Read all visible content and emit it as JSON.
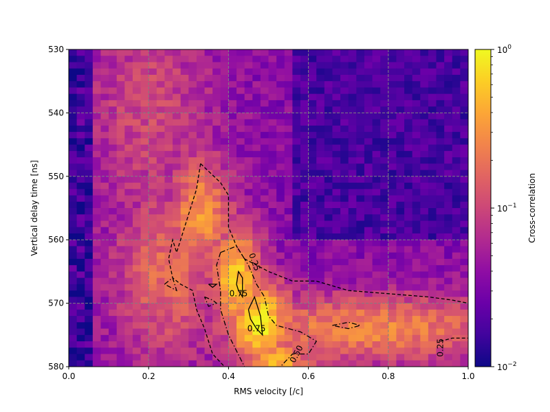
{
  "chart_data": {
    "type": "heatmap",
    "xlabel": "RMS velocity [/c]",
    "ylabel": "Vertical delay time [ns]",
    "xlim": [
      0,
      1
    ],
    "ylim": [
      580,
      530
    ],
    "y_inverted": true,
    "xticks": [
      "0.0",
      "0.2",
      "0.4",
      "0.6",
      "0.8",
      "1.0"
    ],
    "yticks": [
      "530",
      "540",
      "550",
      "560",
      "570",
      "580"
    ],
    "grid": true,
    "colorbar": {
      "label": "Cross-correlation",
      "scale": "log",
      "range": [
        0.01,
        1
      ],
      "tick_labels": [
        {
          "base": "10",
          "exp": "0"
        },
        {
          "base": "10",
          "exp": "−1"
        },
        {
          "base": "10",
          "exp": "−2"
        }
      ],
      "colormap": "plasma",
      "colormap_stops": [
        "#0d0887",
        "#41049d",
        "#6a00a8",
        "#8f0da4",
        "#b12a90",
        "#cc4778",
        "#e16462",
        "#f2844b",
        "#fca636",
        "#fcce25",
        "#f0f921"
      ]
    },
    "grid_size": {
      "nx": 50,
      "ny": 50
    },
    "description_of_field": "Correlation is low (about 0.01-0.1) at small velocities and large velocities with short delay; a high-correlation ridge (0.75+) runs from about v=0.3, t=550 ns down to v=0.5, t=580 ns, with a band of moderate values (0.25-0.5) extending right at t≈567-580 ns.",
    "field_model": {
      "base_log": -1.45,
      "left_band": {
        "v_max": 0.07,
        "log": -2.0
      },
      "blobs": [
        {
          "v": 0.42,
          "t": 566,
          "sv": 0.05,
          "st": 6,
          "amp": 1.25
        },
        {
          "v": 0.48,
          "t": 573,
          "sv": 0.06,
          "st": 5,
          "amp": 1.35
        },
        {
          "v": 0.33,
          "t": 556,
          "sv": 0.06,
          "st": 7,
          "amp": 0.95
        },
        {
          "v": 0.25,
          "t": 565,
          "sv": 0.1,
          "st": 10,
          "amp": 0.7
        },
        {
          "v": 0.2,
          "t": 540,
          "sv": 0.12,
          "st": 14,
          "amp": 0.45
        },
        {
          "v": 0.75,
          "t": 574,
          "sv": 0.3,
          "st": 4,
          "amp": 0.85
        },
        {
          "v": 0.52,
          "t": 580,
          "sv": 0.07,
          "st": 4,
          "amp": 1.1
        }
      ],
      "dark_region": {
        "v_min": 0.55,
        "t_max": 560,
        "log": -1.75
      }
    },
    "contours": [
      {
        "level": 0.25,
        "style": "dash",
        "points": [
          [
            0.33,
            548
          ],
          [
            0.38,
            551
          ],
          [
            0.4,
            553
          ],
          [
            0.4,
            558
          ],
          [
            0.42,
            561
          ],
          [
            0.44,
            563
          ],
          [
            0.5,
            565
          ],
          [
            0.56,
            566.5
          ],
          [
            0.62,
            566.5
          ],
          [
            0.7,
            568
          ],
          [
            0.8,
            568.5
          ],
          [
            0.9,
            569
          ],
          [
            0.96,
            569.5
          ],
          [
            1.0,
            570
          ]
        ]
      },
      {
        "level": 0.25,
        "style": "dash",
        "points": [
          [
            0.33,
            548
          ],
          [
            0.32,
            552
          ],
          [
            0.3,
            556
          ],
          [
            0.28,
            560
          ],
          [
            0.27,
            562
          ],
          [
            0.26,
            560
          ],
          [
            0.25,
            563
          ],
          [
            0.26,
            566
          ],
          [
            0.28,
            567
          ],
          [
            0.31,
            568
          ],
          [
            0.32,
            571
          ],
          [
            0.34,
            574
          ],
          [
            0.36,
            578
          ],
          [
            0.39,
            580
          ]
        ]
      },
      {
        "level": 0.25,
        "style": "dash",
        "points": [
          [
            0.93,
            576
          ],
          [
            0.96,
            575.5
          ],
          [
            1.0,
            575.5
          ]
        ]
      },
      {
        "level": 0.5,
        "style": "dashdot",
        "points": [
          [
            0.38,
            562
          ],
          [
            0.42,
            561
          ],
          [
            0.45,
            564
          ],
          [
            0.47,
            567
          ],
          [
            0.49,
            569
          ],
          [
            0.5,
            572
          ],
          [
            0.52,
            573.5
          ],
          [
            0.58,
            574.5
          ],
          [
            0.62,
            576
          ],
          [
            0.6,
            578
          ],
          [
            0.56,
            578
          ],
          [
            0.53,
            580
          ]
        ]
      },
      {
        "level": 0.5,
        "style": "dashdot",
        "points": [
          [
            0.38,
            562
          ],
          [
            0.37,
            564
          ],
          [
            0.38,
            568
          ],
          [
            0.38,
            571
          ],
          [
            0.4,
            575
          ],
          [
            0.44,
            580
          ]
        ]
      },
      {
        "level": 0.5,
        "style": "dashdot",
        "points": [
          [
            0.66,
            573.5
          ],
          [
            0.7,
            573
          ],
          [
            0.73,
            573.5
          ],
          [
            0.7,
            574
          ],
          [
            0.66,
            573.5
          ]
        ]
      },
      {
        "level": 0.5,
        "style": "dashdot",
        "points": [
          [
            0.24,
            567
          ],
          [
            0.26,
            566
          ],
          [
            0.27,
            568
          ],
          [
            0.24,
            567
          ]
        ]
      },
      {
        "level": 0.5,
        "style": "dashdot",
        "points": [
          [
            0.34,
            569
          ],
          [
            0.36,
            569.5
          ],
          [
            0.37,
            570
          ],
          [
            0.35,
            570.5
          ],
          [
            0.34,
            569
          ]
        ]
      },
      {
        "level": 0.75,
        "style": "solid",
        "points": [
          [
            0.42,
            567
          ],
          [
            0.425,
            565
          ],
          [
            0.435,
            566
          ],
          [
            0.435,
            569
          ],
          [
            0.425,
            568
          ],
          [
            0.42,
            567
          ]
        ]
      },
      {
        "level": 0.75,
        "style": "solid",
        "points": [
          [
            0.45,
            571
          ],
          [
            0.465,
            569
          ],
          [
            0.48,
            572
          ],
          [
            0.485,
            575
          ],
          [
            0.47,
            574
          ],
          [
            0.455,
            572.5
          ],
          [
            0.45,
            571
          ]
        ]
      },
      {
        "level": 0.75,
        "style": "solid",
        "points": [
          [
            0.35,
            567
          ],
          [
            0.37,
            567
          ],
          [
            0.36,
            567.5
          ],
          [
            0.35,
            567
          ]
        ]
      }
    ],
    "contour_labels": [
      {
        "text": "0.25",
        "v": 0.465,
        "t": 563.5,
        "rot": 70
      },
      {
        "text": "0.75",
        "v": 0.425,
        "t": 568.5,
        "rot": 0
      },
      {
        "text": "0.75",
        "v": 0.47,
        "t": 574,
        "rot": 0
      },
      {
        "text": "0.50",
        "v": 0.57,
        "t": 578,
        "rot": -62
      },
      {
        "text": "0.25",
        "v": 0.93,
        "t": 577,
        "rot": -90
      }
    ]
  }
}
